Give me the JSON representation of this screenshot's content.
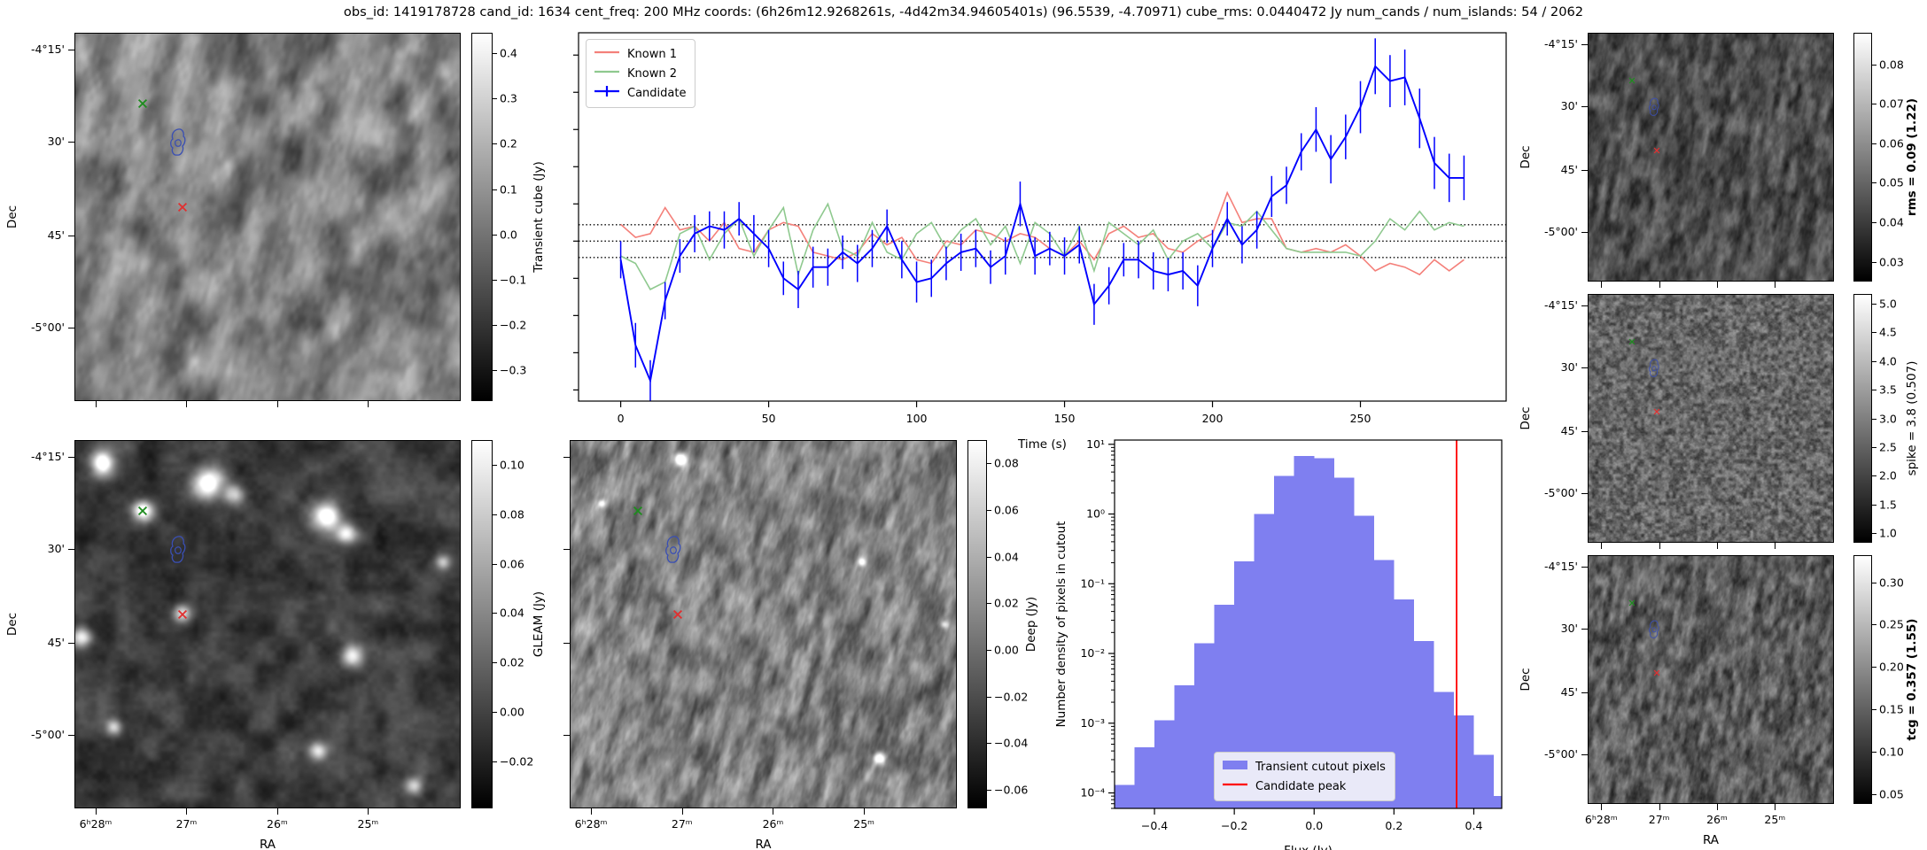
{
  "figure": {
    "title": "obs_id: 1419178728 cand_id: 1634 cent_freq: 200 MHz coords: (6h26m12.9268261s, -4d42m34.94605401s) (96.5539, -4.70971) cube_rms: 0.0440472 Jy num_cands / num_islands: 54 / 2062"
  },
  "sky_axes": {
    "dec_label": "Dec",
    "ra_label": "RA",
    "dec_ticks": [
      {
        "f": 0.045,
        "label": "-4°15'"
      },
      {
        "f": 0.295,
        "label": "30'"
      },
      {
        "f": 0.55,
        "label": "45'"
      },
      {
        "f": 0.8,
        "label": "-5°00'"
      }
    ],
    "ra_ticks": [
      {
        "f": 0.055,
        "label": "6ʰ28ᵐ"
      },
      {
        "f": 0.29,
        "label": "27ᵐ"
      },
      {
        "f": 0.525,
        "label": "26ᵐ"
      },
      {
        "f": 0.76,
        "label": "25ᵐ"
      }
    ]
  },
  "markers": {
    "known1": {
      "name": "known-source-1",
      "color": "#e03030",
      "fx": 0.277,
      "fy": 0.47
    },
    "known2": {
      "name": "known-source-2",
      "color": "#1e8c1e",
      "fx": 0.175,
      "fy": 0.19
    },
    "candidate": {
      "name": "candidate-contour",
      "color": "#3a4fb4",
      "fx": 0.265,
      "fy": 0.295
    }
  },
  "sky_panels": [
    {
      "id": "transient",
      "colorbar": {
        "label": "Transient cube (Jy)",
        "bold": false,
        "vmin": -0.368,
        "vmax": 0.445,
        "ticks": [
          {
            "v": 0.4,
            "label": "0.4"
          },
          {
            "v": 0.3,
            "label": "0.3"
          },
          {
            "v": 0.2,
            "label": "0.2"
          },
          {
            "v": 0.1,
            "label": "0.1"
          },
          {
            "v": 0.0,
            "label": "0.0"
          },
          {
            "v": -0.1,
            "label": "−0.1"
          },
          {
            "v": -0.2,
            "label": "−0.2"
          },
          {
            "v": -0.3,
            "label": "−0.3"
          }
        ]
      },
      "texture": {
        "seed": 11,
        "cell": 24,
        "stretch": 1.8,
        "angle": 105,
        "mean": 0.5,
        "amp": 0.3
      },
      "sources": []
    },
    {
      "id": "gleam",
      "colorbar": {
        "label": "GLEAM (Jy)",
        "bold": false,
        "vmin": -0.039,
        "vmax": 0.11,
        "ticks": [
          {
            "v": 0.1,
            "label": "0.10"
          },
          {
            "v": 0.08,
            "label": "0.08"
          },
          {
            "v": 0.06,
            "label": "0.06"
          },
          {
            "v": 0.04,
            "label": "0.04"
          },
          {
            "v": 0.02,
            "label": "0.02"
          },
          {
            "v": 0.0,
            "label": "0.00"
          },
          {
            "v": -0.02,
            "label": "−0.02"
          }
        ]
      },
      "texture": {
        "seed": 22,
        "cell": 26,
        "stretch": 1.0,
        "angle": 0,
        "mean": 0.24,
        "amp": 0.17
      },
      "sources": [
        [
          0.07,
          0.06,
          9,
          0.9
        ],
        [
          0.345,
          0.115,
          12,
          1.0
        ],
        [
          0.41,
          0.145,
          8,
          0.6
        ],
        [
          0.655,
          0.205,
          11,
          1.0
        ],
        [
          0.705,
          0.25,
          8,
          0.7
        ],
        [
          0.175,
          0.19,
          8,
          0.85
        ],
        [
          0.015,
          0.535,
          8,
          0.8
        ],
        [
          0.72,
          0.585,
          9,
          0.8
        ],
        [
          0.277,
          0.47,
          7,
          0.7
        ],
        [
          0.1,
          0.78,
          6,
          0.55
        ],
        [
          0.63,
          0.845,
          7,
          0.65
        ],
        [
          0.955,
          0.33,
          6,
          0.5
        ],
        [
          0.88,
          0.94,
          7,
          0.6
        ]
      ]
    },
    {
      "id": "deep",
      "colorbar": {
        "label": "Deep (Jy)",
        "bold": false,
        "vmin": -0.068,
        "vmax": 0.09,
        "ticks": [
          {
            "v": 0.08,
            "label": "0.08"
          },
          {
            "v": 0.06,
            "label": "0.06"
          },
          {
            "v": 0.04,
            "label": "0.04"
          },
          {
            "v": 0.02,
            "label": "0.02"
          },
          {
            "v": 0.0,
            "label": "0.00"
          },
          {
            "v": -0.02,
            "label": "−0.02"
          },
          {
            "v": -0.04,
            "label": "−0.04"
          },
          {
            "v": -0.06,
            "label": "−0.06"
          }
        ]
      },
      "texture": {
        "seed": 33,
        "cell": 10,
        "stretch": 2.6,
        "angle": 105,
        "mean": 0.5,
        "amp": 0.3
      },
      "sources": [
        [
          0.285,
          0.05,
          5,
          0.85
        ],
        [
          0.08,
          0.17,
          3,
          0.5
        ],
        [
          0.755,
          0.33,
          3,
          0.5
        ],
        [
          0.8,
          0.865,
          5,
          0.75
        ],
        [
          0.97,
          0.5,
          3,
          0.45
        ]
      ]
    },
    {
      "id": "rms",
      "colorbar": {
        "label": "rms = 0.09 (1.22)",
        "bold": true,
        "vmin": 0.025,
        "vmax": 0.088,
        "ticks": [
          {
            "v": 0.08,
            "label": "0.08"
          },
          {
            "v": 0.07,
            "label": "0.07"
          },
          {
            "v": 0.06,
            "label": "0.06"
          },
          {
            "v": 0.05,
            "label": "0.05"
          },
          {
            "v": 0.04,
            "label": "0.04"
          },
          {
            "v": 0.03,
            "label": "0.03"
          }
        ]
      },
      "texture": {
        "seed": 44,
        "cell": 8,
        "stretch": 2.2,
        "angle": 100,
        "mean": 0.3,
        "amp": 0.24
      },
      "sources": []
    },
    {
      "id": "spike",
      "colorbar": {
        "label": "spike = 3.8 (0.507)",
        "bold": false,
        "vmin": 0.83,
        "vmax": 5.17,
        "ticks": [
          {
            "v": 5.0,
            "label": "5.0"
          },
          {
            "v": 4.5,
            "label": "4.5"
          },
          {
            "v": 4.0,
            "label": "4.0"
          },
          {
            "v": 3.5,
            "label": "3.5"
          },
          {
            "v": 3.0,
            "label": "3.0"
          },
          {
            "v": 2.5,
            "label": "2.5"
          },
          {
            "v": 2.0,
            "label": "2.0"
          },
          {
            "v": 1.5,
            "label": "1.5"
          },
          {
            "v": 1.0,
            "label": "1.0"
          }
        ]
      },
      "texture": {
        "seed": 55,
        "cell": 4,
        "stretch": 1.0,
        "angle": 0,
        "mean": 0.4,
        "amp": 0.26
      },
      "sources": []
    },
    {
      "id": "tcg",
      "colorbar": {
        "label": "tcg = 0.357 (1.55)",
        "bold": true,
        "vmin": 0.038,
        "vmax": 0.332,
        "ticks": [
          {
            "v": 0.3,
            "label": "0.30"
          },
          {
            "v": 0.25,
            "label": "0.25"
          },
          {
            "v": 0.2,
            "label": "0.20"
          },
          {
            "v": 0.15,
            "label": "0.15"
          },
          {
            "v": 0.1,
            "label": "0.10"
          },
          {
            "v": 0.05,
            "label": "0.05"
          }
        ]
      },
      "texture": {
        "seed": 66,
        "cell": 6,
        "stretch": 2.2,
        "angle": 100,
        "mean": 0.36,
        "amp": 0.27
      },
      "sources": []
    }
  ],
  "chart_data": [
    {
      "type": "line",
      "title": "",
      "xlabel": "Time (s)",
      "ylabel": "",
      "xlim": [
        -14.25,
        299.25
      ],
      "ylim": [
        -0.43,
        0.56
      ],
      "x_ticks": [
        0,
        50,
        100,
        150,
        200,
        250
      ],
      "y_ticks": [
        -0.4,
        -0.3,
        -0.2,
        -0.1,
        0,
        0.1,
        0.2,
        0.3,
        0.4,
        0.5
      ],
      "y_tick_labels_shown": false,
      "hlines": [
        0.044,
        0,
        -0.044
      ],
      "x_start": 0,
      "x_step": 5,
      "legend_position": "upper left",
      "series": [
        {
          "name": "Known 1",
          "color": "#f4807a",
          "values": [
            0.045,
            0.01,
            0.02,
            0.09,
            0.03,
            0.04,
            0.0,
            0.05,
            -0.02,
            -0.03,
            0.03,
            0.05,
            0.04,
            -0.03,
            -0.04,
            -0.05,
            -0.03,
            0.02,
            -0.01,
            0.01,
            -0.05,
            -0.06,
            0.0,
            -0.01,
            0.03,
            0.02,
            0.0,
            0.02,
            0.01,
            -0.02,
            -0.04,
            0.0,
            -0.05,
            0.02,
            0.04,
            0.01,
            0.02,
            -0.02,
            -0.03,
            0.0,
            0.02,
            0.13,
            0.05,
            0.06,
            0.06,
            -0.02,
            -0.03,
            -0.02,
            -0.03,
            -0.01,
            -0.04,
            -0.08,
            -0.06,
            -0.07,
            -0.09,
            -0.05,
            -0.08,
            -0.05
          ]
        },
        {
          "name": "Known 2",
          "color": "#8fc98f",
          "values": [
            -0.04,
            -0.06,
            -0.13,
            -0.11,
            0.02,
            0.04,
            -0.05,
            0.02,
            0.06,
            -0.04,
            0.03,
            0.09,
            -0.09,
            0.03,
            0.1,
            -0.02,
            -0.04,
            0.05,
            -0.03,
            -0.05,
            0.02,
            0.05,
            -0.02,
            0.03,
            0.06,
            -0.01,
            0.04,
            -0.06,
            0.05,
            0.02,
            -0.04,
            0.04,
            -0.08,
            0.05,
            0.02,
            -0.01,
            0.03,
            -0.05,
            0.0,
            0.02,
            -0.02,
            0.05,
            0.04,
            0.08,
            0.03,
            -0.02,
            -0.03,
            -0.03,
            -0.03,
            -0.03,
            -0.04,
            0.0,
            0.06,
            0.03,
            0.08,
            0.03,
            0.05,
            0.04
          ]
        },
        {
          "name": "Candidate",
          "color": "#0000ff",
          "values": [
            -0.05,
            -0.28,
            -0.375,
            -0.16,
            -0.04,
            0.02,
            0.04,
            0.03,
            0.06,
            0.02,
            -0.02,
            -0.1,
            -0.13,
            -0.07,
            -0.07,
            -0.03,
            -0.06,
            -0.02,
            0.04,
            -0.05,
            -0.11,
            -0.1,
            -0.06,
            -0.03,
            -0.02,
            -0.07,
            -0.04,
            0.1,
            -0.04,
            -0.02,
            -0.04,
            -0.01,
            -0.17,
            -0.12,
            -0.05,
            -0.05,
            -0.08,
            -0.09,
            -0.08,
            -0.12,
            -0.02,
            0.06,
            -0.01,
            0.03,
            0.12,
            0.15,
            0.24,
            0.3,
            0.22,
            0.28,
            0.36,
            0.47,
            0.43,
            0.44,
            0.33,
            0.21,
            0.17,
            0.17
          ],
          "yerr": [
            0.05,
            0.06,
            0.055,
            0.05,
            0.045,
            0.05,
            0.04,
            0.05,
            0.045,
            0.05,
            0.05,
            0.045,
            0.05,
            0.055,
            0.05,
            0.045,
            0.05,
            0.05,
            0.045,
            0.05,
            0.055,
            0.05,
            0.045,
            0.05,
            0.05,
            0.045,
            0.05,
            0.06,
            0.05,
            0.045,
            0.05,
            0.05,
            0.055,
            0.05,
            0.045,
            0.05,
            0.05,
            0.045,
            0.05,
            0.055,
            0.05,
            0.045,
            0.05,
            0.05,
            0.055,
            0.05,
            0.05,
            0.06,
            0.065,
            0.06,
            0.07,
            0.075,
            0.07,
            0.075,
            0.08,
            0.07,
            0.065,
            0.06
          ]
        }
      ]
    },
    {
      "type": "histogram",
      "xlabel": "Flux (Jy)",
      "ylabel": "Number density of pixels in cutout",
      "yscale": "log",
      "xlim": [
        -0.5,
        0.47
      ],
      "ylim": [
        6e-05,
        11.5
      ],
      "x_ticks": [
        {
          "v": -0.4,
          "label": "−0.4"
        },
        {
          "v": -0.2,
          "label": "−0.2"
        },
        {
          "v": 0.0,
          "label": "0.0"
        },
        {
          "v": 0.2,
          "label": "0.2"
        },
        {
          "v": 0.4,
          "label": "0.4"
        }
      ],
      "y_ticks": [
        {
          "v": 10,
          "label": "10¹"
        },
        {
          "v": 1,
          "label": "10⁰"
        },
        {
          "v": 0.1,
          "label": "10⁻¹"
        },
        {
          "v": 0.01,
          "label": "10⁻²"
        },
        {
          "v": 0.001,
          "label": "10⁻³"
        },
        {
          "v": 0.0001,
          "label": "10⁻⁴"
        }
      ],
      "bar_color": "#7f7ff0",
      "bin_start": -0.5,
      "bin_width": 0.05,
      "densities": [
        0.00013,
        0.00045,
        0.0011,
        0.0035,
        0.014,
        0.05,
        0.21,
        1.0,
        3.5,
        6.8,
        6.3,
        3.3,
        0.95,
        0.22,
        0.06,
        0.015,
        0.0028,
        0.0013,
        0.00035,
        9e-05
      ],
      "vline": {
        "value": 0.357,
        "color": "#ff0000"
      },
      "legend_position": "lower center",
      "legend": [
        {
          "label": "Transient cutout pixels",
          "swatch": "patch",
          "color": "#7f7ff0"
        },
        {
          "label": "Candidate peak",
          "swatch": "line",
          "color": "#ff0000"
        }
      ]
    }
  ]
}
